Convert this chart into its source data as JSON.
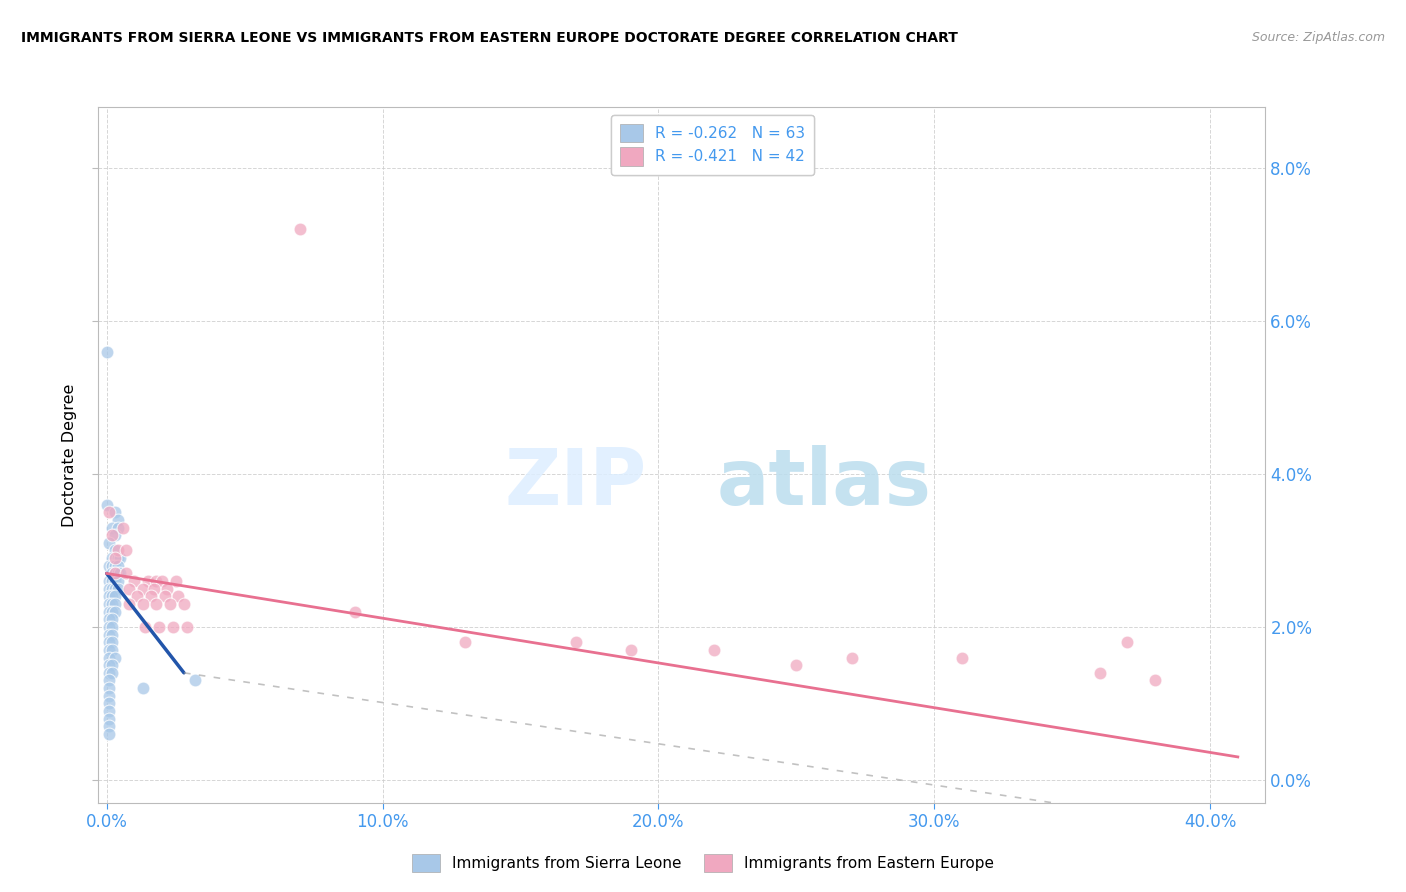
{
  "title": "IMMIGRANTS FROM SIERRA LEONE VS IMMIGRANTS FROM EASTERN EUROPE DOCTORATE DEGREE CORRELATION CHART",
  "source": "Source: ZipAtlas.com",
  "xlim": [
    -0.003,
    0.42
  ],
  "ylim": [
    -0.003,
    0.088
  ],
  "ylabel": "Doctorate Degree",
  "x_tick_vals": [
    0.0,
    0.1,
    0.2,
    0.3,
    0.4
  ],
  "x_tick_labels": [
    "0.0%",
    "10.0%",
    "20.0%",
    "30.0%",
    "40.0%"
  ],
  "y_tick_vals": [
    0.0,
    0.02,
    0.04,
    0.06,
    0.08
  ],
  "y_tick_labels": [
    "0.0%",
    "2.0%",
    "4.0%",
    "6.0%",
    "8.0%"
  ],
  "legend_entry1": "R = -0.262   N = 63",
  "legend_entry2": "R = -0.421   N = 42",
  "legend_label1": "Immigrants from Sierra Leone",
  "legend_label2": "Immigrants from Eastern Europe",
  "blue_color": "#a8c8e8",
  "pink_color": "#f0a8c0",
  "blue_line_color": "#2255aa",
  "pink_line_color": "#e87090",
  "tick_color": "#4499ee",
  "grid_color": "#cccccc",
  "blue_scatter": [
    [
      0.0,
      0.056
    ],
    [
      0.0,
      0.036
    ],
    [
      0.003,
      0.035
    ],
    [
      0.004,
      0.034
    ],
    [
      0.002,
      0.033
    ],
    [
      0.004,
      0.033
    ],
    [
      0.003,
      0.032
    ],
    [
      0.001,
      0.031
    ],
    [
      0.003,
      0.03
    ],
    [
      0.002,
      0.029
    ],
    [
      0.004,
      0.029
    ],
    [
      0.005,
      0.029
    ],
    [
      0.001,
      0.028
    ],
    [
      0.002,
      0.028
    ],
    [
      0.003,
      0.028
    ],
    [
      0.004,
      0.028
    ],
    [
      0.002,
      0.027
    ],
    [
      0.003,
      0.027
    ],
    [
      0.004,
      0.027
    ],
    [
      0.005,
      0.027
    ],
    [
      0.001,
      0.026
    ],
    [
      0.002,
      0.026
    ],
    [
      0.003,
      0.026
    ],
    [
      0.004,
      0.026
    ],
    [
      0.001,
      0.025
    ],
    [
      0.002,
      0.025
    ],
    [
      0.003,
      0.025
    ],
    [
      0.004,
      0.025
    ],
    [
      0.001,
      0.024
    ],
    [
      0.002,
      0.024
    ],
    [
      0.003,
      0.024
    ],
    [
      0.001,
      0.023
    ],
    [
      0.002,
      0.023
    ],
    [
      0.003,
      0.023
    ],
    [
      0.001,
      0.022
    ],
    [
      0.002,
      0.022
    ],
    [
      0.003,
      0.022
    ],
    [
      0.001,
      0.021
    ],
    [
      0.002,
      0.021
    ],
    [
      0.001,
      0.02
    ],
    [
      0.002,
      0.02
    ],
    [
      0.001,
      0.019
    ],
    [
      0.002,
      0.019
    ],
    [
      0.001,
      0.018
    ],
    [
      0.002,
      0.018
    ],
    [
      0.001,
      0.017
    ],
    [
      0.002,
      0.017
    ],
    [
      0.001,
      0.016
    ],
    [
      0.003,
      0.016
    ],
    [
      0.001,
      0.015
    ],
    [
      0.002,
      0.015
    ],
    [
      0.001,
      0.014
    ],
    [
      0.002,
      0.014
    ],
    [
      0.001,
      0.013
    ],
    [
      0.001,
      0.012
    ],
    [
      0.001,
      0.011
    ],
    [
      0.001,
      0.01
    ],
    [
      0.001,
      0.009
    ],
    [
      0.001,
      0.008
    ],
    [
      0.001,
      0.007
    ],
    [
      0.001,
      0.006
    ],
    [
      0.013,
      0.012
    ],
    [
      0.032,
      0.013
    ]
  ],
  "pink_scatter": [
    [
      0.07,
      0.072
    ],
    [
      0.001,
      0.035
    ],
    [
      0.006,
      0.033
    ],
    [
      0.002,
      0.032
    ],
    [
      0.004,
      0.03
    ],
    [
      0.007,
      0.03
    ],
    [
      0.003,
      0.029
    ],
    [
      0.003,
      0.027
    ],
    [
      0.007,
      0.027
    ],
    [
      0.01,
      0.026
    ],
    [
      0.015,
      0.026
    ],
    [
      0.018,
      0.026
    ],
    [
      0.02,
      0.026
    ],
    [
      0.025,
      0.026
    ],
    [
      0.008,
      0.025
    ],
    [
      0.013,
      0.025
    ],
    [
      0.017,
      0.025
    ],
    [
      0.022,
      0.025
    ],
    [
      0.011,
      0.024
    ],
    [
      0.016,
      0.024
    ],
    [
      0.021,
      0.024
    ],
    [
      0.026,
      0.024
    ],
    [
      0.008,
      0.023
    ],
    [
      0.013,
      0.023
    ],
    [
      0.018,
      0.023
    ],
    [
      0.023,
      0.023
    ],
    [
      0.028,
      0.023
    ],
    [
      0.09,
      0.022
    ],
    [
      0.014,
      0.02
    ],
    [
      0.019,
      0.02
    ],
    [
      0.024,
      0.02
    ],
    [
      0.029,
      0.02
    ],
    [
      0.17,
      0.018
    ],
    [
      0.13,
      0.018
    ],
    [
      0.22,
      0.017
    ],
    [
      0.19,
      0.017
    ],
    [
      0.27,
      0.016
    ],
    [
      0.31,
      0.016
    ],
    [
      0.25,
      0.015
    ],
    [
      0.36,
      0.014
    ],
    [
      0.38,
      0.013
    ],
    [
      0.37,
      0.018
    ]
  ],
  "blue_trendline_solid": [
    [
      0.0,
      0.027
    ],
    [
      0.028,
      0.014
    ]
  ],
  "blue_trendline_dashed": [
    [
      0.028,
      0.014
    ],
    [
      0.38,
      -0.005
    ]
  ],
  "pink_trendline": [
    [
      0.0,
      0.027
    ],
    [
      0.41,
      0.003
    ]
  ]
}
